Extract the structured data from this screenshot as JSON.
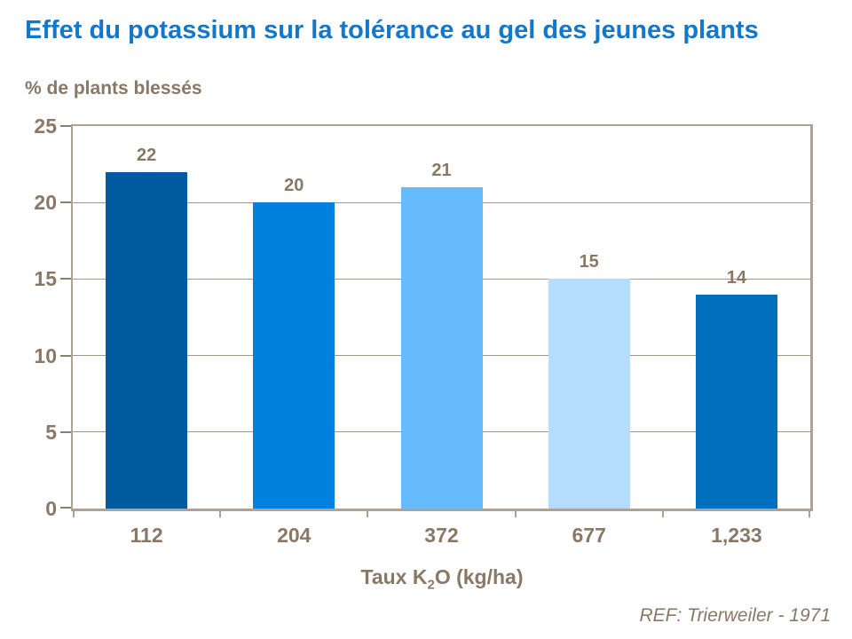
{
  "page": {
    "title": "Effet du potassium sur la tolérance au gel des jeunes plants",
    "y_axis_caption": "% de plants blessés",
    "reference": "REF: Trierweiler - 1971"
  },
  "colors": {
    "title_blue": "#1577C8",
    "text_brown": "#8A7866",
    "plot_border": "#AFA193",
    "gridline": "#A59584",
    "bars": [
      "#005B9E",
      "#0081E0",
      "#66BBFC",
      "#B5DCFC",
      "#0070BE"
    ]
  },
  "chart_data": {
    "type": "bar",
    "title": "Effet du potassium sur la tolérance au gel des jeunes plants",
    "categories": [
      "112",
      "204",
      "372",
      "677",
      "1,233"
    ],
    "values": [
      22,
      20,
      21,
      15,
      14
    ],
    "bar_colors": [
      "#005B9E",
      "#0081E0",
      "#66BBFC",
      "#B5DCFC",
      "#0070BE"
    ],
    "xlabel": "Taux K2O (kg/ha)",
    "xlabel_parts": {
      "pre": "Taux K",
      "sub": "2",
      "post": "O (kg/ha)"
    },
    "ylabel": "% de plants blessés",
    "ylim": [
      0,
      25
    ],
    "yticks": [
      0,
      5,
      10,
      15,
      20,
      25
    ],
    "grid": "horizontal",
    "legend": "none",
    "annotation": "REF: Trierweiler - 1971"
  }
}
